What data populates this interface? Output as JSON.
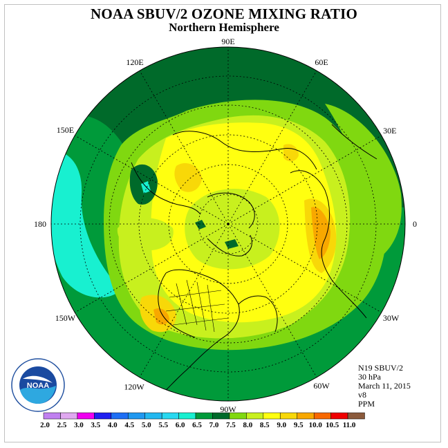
{
  "title": "NOAA SBUV/2 OZONE MIXING RATIO",
  "subtitle": "Northern Hemisphere",
  "longitude_labels": [
    "90E",
    "60E",
    "30E",
    "0",
    "30W",
    "60W",
    "90W",
    "120W",
    "150W",
    "180",
    "150E",
    "120E"
  ],
  "info": {
    "instrument": "N19 SBUV/2",
    "level": "30 hPa",
    "date": "March 11, 2015",
    "version": "v8",
    "units": "PPM"
  },
  "logo": {
    "text": "NOAA",
    "ring_text": "NATIONAL OCEANIC AND ATMOSPHERIC ADMINISTRATION • U.S. DEPARTMENT OF COMMERCE"
  },
  "colorbar": {
    "labels": [
      "2.0",
      "2.5",
      "3.0",
      "3.5",
      "4.0",
      "4.5",
      "5.0",
      "5.5",
      "6.0",
      "6.5",
      "7.0",
      "7.5",
      "8.0",
      "8.5",
      "9.0",
      "9.5",
      "10.0",
      "10.5",
      "11.0"
    ],
    "colors": [
      "#c080f0",
      "#e0a8f0",
      "#f000f0",
      "#2020f0",
      "#1e6ff5",
      "#1f98f0",
      "#22b8f0",
      "#28d8f0",
      "#18f0d0",
      "#009a3a",
      "#006a2a",
      "#80d810",
      "#c8f01e",
      "#ffff10",
      "#f8d808",
      "#f8a800",
      "#f86800",
      "#f00000",
      "#8b5a3c"
    ]
  },
  "colors": {
    "deep_green": "#006a2a",
    "mid_green": "#009a3a",
    "light_green": "#80d810",
    "yellow_green": "#c8f01e",
    "yellow": "#ffff10",
    "orange_yellow": "#f8d808",
    "orange": "#f8a800",
    "cyan": "#18f0d0"
  }
}
